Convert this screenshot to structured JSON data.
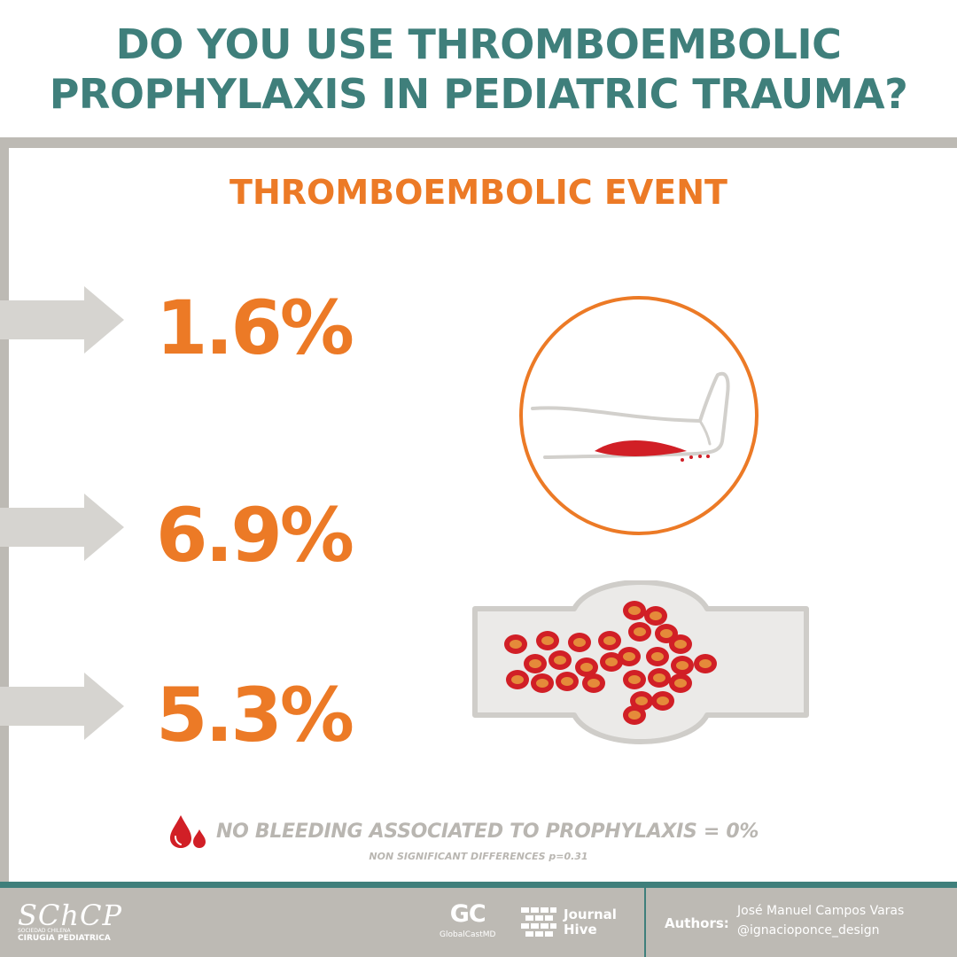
{
  "title": {
    "line1": "DO YOU USE THROMBOEMBOLIC",
    "line2": "PROPHYLAXIS IN PEDIATRIC TRAUMA?"
  },
  "subtitle": "THROMBOEMBOLIC EVENT",
  "stats": [
    {
      "value": "1.6%"
    },
    {
      "value": "6.9%"
    },
    {
      "value": "5.3%"
    }
  ],
  "note": {
    "text": "NO BLEEDING ASSOCIATED TO PROPHYLAXIS = 0%",
    "icon": "blood-drop-icon",
    "sub": "NON SIGNIFICANT DIFFERENCES p=0.31"
  },
  "footer": {
    "logo_main": "SChCP",
    "logo_sub1": "SOCIEDAD CHILENA",
    "logo_sub2": "CIRUGIA PEDIATRICA",
    "gc_mark": "GC",
    "gc_name": "GlobalCastMD",
    "jh_line1": "Journal",
    "jh_line2": "Hive",
    "authors_label": "Authors:",
    "authors": [
      "José Manuel Campos Varas",
      "@ignacioponce_design"
    ]
  },
  "colors": {
    "teal": "#3f7f7b",
    "orange": "#ec7a26",
    "gray": "#bdbab4",
    "red": "#d11f26"
  }
}
